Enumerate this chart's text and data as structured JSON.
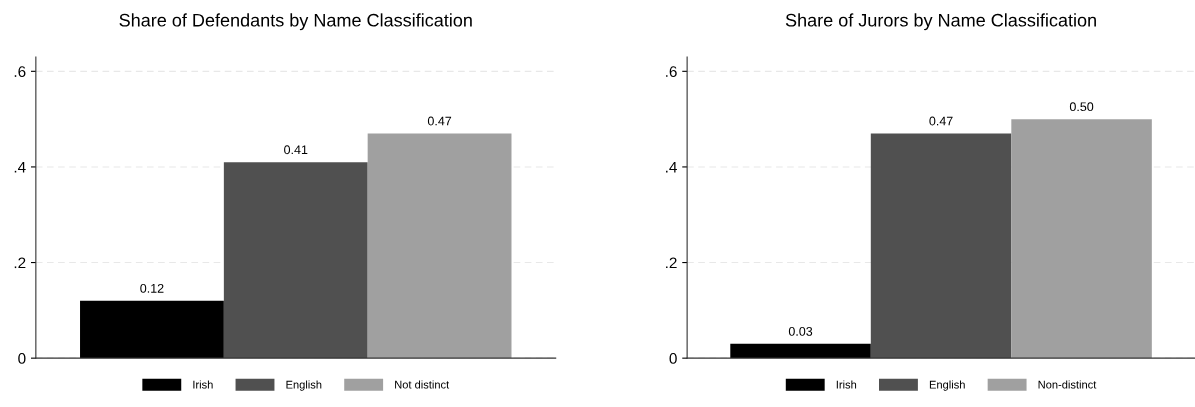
{
  "chart_data": [
    {
      "type": "bar",
      "title": "Share of Defendants by Name Classification",
      "categories": [
        null
      ],
      "series": [
        {
          "name": "Irish",
          "color": "#000000",
          "values": [
            0.12
          ],
          "value_labels": [
            "0.12"
          ]
        },
        {
          "name": "English",
          "color": "#505050",
          "values": [
            0.41
          ],
          "value_labels": [
            "0.41"
          ]
        },
        {
          "name": "Not distinct",
          "color": "#a0a0a0",
          "values": [
            0.47
          ],
          "value_labels": [
            "0.47"
          ]
        }
      ],
      "ylim": [
        0,
        0.63
      ],
      "yticks": [
        {
          "value": 0,
          "label": "0"
        },
        {
          "value": 0.2,
          "label": ".2"
        },
        {
          "value": 0.4,
          "label": ".4"
        },
        {
          "value": 0.6,
          "label": ".6"
        }
      ],
      "grid": "y",
      "legend": "bottom"
    },
    {
      "type": "bar",
      "title": "Share of Jurors by Name Classification",
      "categories": [
        null
      ],
      "series": [
        {
          "name": "Irish",
          "color": "#000000",
          "values": [
            0.03
          ],
          "value_labels": [
            "0.03"
          ]
        },
        {
          "name": "English",
          "color": "#505050",
          "values": [
            0.47
          ],
          "value_labels": [
            "0.47"
          ]
        },
        {
          "name": "Non-distinct",
          "color": "#a0a0a0",
          "values": [
            0.5
          ],
          "value_labels": [
            "0.50"
          ]
        }
      ],
      "ylim": [
        0,
        0.63
      ],
      "yticks": [
        {
          "value": 0,
          "label": "0"
        },
        {
          "value": 0.2,
          "label": ".2"
        },
        {
          "value": 0.4,
          "label": ".4"
        },
        {
          "value": 0.6,
          "label": ".6"
        }
      ],
      "grid": "y",
      "legend": "bottom"
    }
  ]
}
